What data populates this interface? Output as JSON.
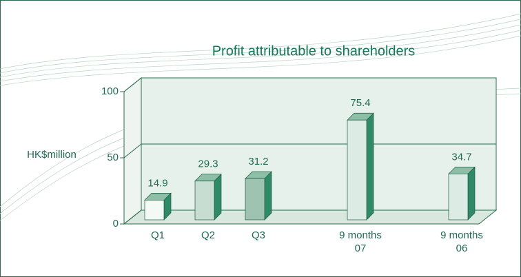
{
  "chart_data": {
    "type": "bar3d",
    "title": "Profit attributable to shareholders",
    "y_label": "HK$million",
    "categories": [
      "Q1",
      "Q2",
      "Q3",
      "9 months 07",
      "9 months 06"
    ],
    "values": [
      14.9,
      29.3,
      31.2,
      75.4,
      34.7
    ],
    "colors": [
      "#f3f9f5",
      "#c8ddd2",
      "#9ec4b1",
      "#dcebe3",
      "#dcebe3"
    ],
    "side_color": "#2f8a68",
    "ylim": [
      0,
      100
    ],
    "yticks": [
      0,
      50,
      100
    ],
    "grid": true
  }
}
